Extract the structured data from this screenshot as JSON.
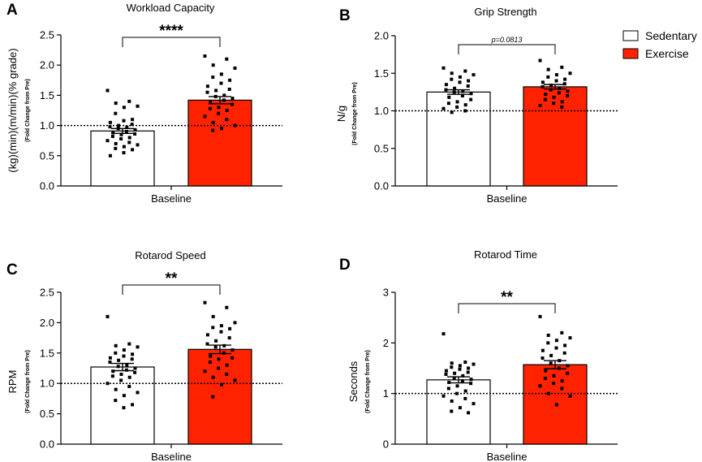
{
  "legend": {
    "items": [
      {
        "label": "Sedentary",
        "color": "#ffffff"
      },
      {
        "label": "Exercise",
        "color": "#ff2200"
      }
    ]
  },
  "chart_data": [
    {
      "panel": "A",
      "type": "bar",
      "title": "Workload Capacity",
      "xlabel": "Baseline",
      "ylabel": "(kg)(min)(m/min)(% grade)",
      "ylabel_sub": "(Fold Change from Pre)",
      "ylim": [
        0,
        2.5
      ],
      "yticks": [
        0.0,
        0.5,
        1.0,
        1.5,
        2.0,
        2.5
      ],
      "ytick_labels": [
        "0.0",
        "0.5",
        "1.0",
        "1.5",
        "2.0",
        "2.5"
      ],
      "reference_line": 1.0,
      "significance": "****",
      "series": [
        {
          "name": "Sedentary",
          "color": "#ffffff",
          "mean": 0.91,
          "sem": 0.04,
          "points": [
            1.58,
            1.4,
            1.37,
            1.32,
            1.3,
            1.2,
            1.1,
            1.08,
            1.05,
            1.02,
            1.0,
            0.98,
            0.97,
            0.95,
            0.93,
            0.9,
            0.88,
            0.86,
            0.85,
            0.82,
            0.8,
            0.78,
            0.75,
            0.72,
            0.7,
            0.68,
            0.65,
            0.62,
            0.6,
            0.55,
            0.5
          ]
        },
        {
          "name": "Exercise",
          "color": "#ff2200",
          "mean": 1.42,
          "sem": 0.06,
          "points": [
            2.15,
            2.1,
            2.0,
            1.95,
            1.85,
            1.8,
            1.75,
            1.7,
            1.65,
            1.6,
            1.58,
            1.55,
            1.5,
            1.48,
            1.45,
            1.42,
            1.4,
            1.35,
            1.3,
            1.28,
            1.25,
            1.2,
            1.15,
            1.1,
            1.05,
            1.0,
            0.95,
            0.92
          ]
        }
      ]
    },
    {
      "panel": "B",
      "type": "bar",
      "title": "Grip Strength",
      "xlabel": "Baseline",
      "ylabel": "N/g",
      "ylabel_sub": "(Fold Change from Pre)",
      "ylim": [
        0,
        2.0
      ],
      "yticks": [
        0.0,
        0.5,
        1.0,
        1.5,
        2.0
      ],
      "ytick_labels": [
        "0.0",
        "0.5",
        "1.0",
        "1.5",
        "2.0"
      ],
      "reference_line": 1.0,
      "significance": "p=0.0813",
      "series": [
        {
          "name": "Sedentary",
          "color": "#ffffff",
          "mean": 1.25,
          "sem": 0.03,
          "points": [
            1.57,
            1.53,
            1.5,
            1.48,
            1.45,
            1.42,
            1.4,
            1.38,
            1.35,
            1.33,
            1.3,
            1.28,
            1.26,
            1.25,
            1.23,
            1.2,
            1.18,
            1.15,
            1.12,
            1.1,
            1.08,
            1.05,
            1.03,
            1.0,
            0.98
          ]
        },
        {
          "name": "Exercise",
          "color": "#ff2200",
          "mean": 1.32,
          "sem": 0.03,
          "points": [
            1.67,
            1.58,
            1.55,
            1.5,
            1.48,
            1.45,
            1.42,
            1.4,
            1.38,
            1.36,
            1.34,
            1.32,
            1.3,
            1.28,
            1.26,
            1.24,
            1.22,
            1.2,
            1.18,
            1.15,
            1.12,
            1.1,
            1.07,
            1.05
          ]
        }
      ]
    },
    {
      "panel": "C",
      "type": "bar",
      "title": "Rotarod Speed",
      "xlabel": "Baseline",
      "ylabel": "RPM",
      "ylabel_sub": "(Fold Change from Pre)",
      "ylim": [
        0,
        2.5
      ],
      "yticks": [
        0.0,
        0.5,
        1.0,
        1.5,
        2.0,
        2.5
      ],
      "ytick_labels": [
        "0.0",
        "0.5",
        "1.0",
        "1.5",
        "2.0",
        "2.5"
      ],
      "reference_line": 1.0,
      "significance": "**",
      "series": [
        {
          "name": "Sedentary",
          "color": "#ffffff",
          "mean": 1.27,
          "sem": 0.06,
          "points": [
            2.1,
            1.65,
            1.62,
            1.6,
            1.55,
            1.5,
            1.48,
            1.45,
            1.42,
            1.4,
            1.38,
            1.35,
            1.3,
            1.28,
            1.25,
            1.22,
            1.2,
            1.18,
            1.15,
            1.12,
            1.1,
            1.05,
            1.0,
            0.95,
            0.9,
            0.85,
            0.8,
            0.72,
            0.65,
            0.6
          ]
        },
        {
          "name": "Exercise",
          "color": "#ff2200",
          "mean": 1.56,
          "sem": 0.07,
          "points": [
            2.33,
            2.25,
            2.1,
            2.0,
            1.95,
            1.92,
            1.9,
            1.85,
            1.8,
            1.75,
            1.7,
            1.65,
            1.62,
            1.6,
            1.55,
            1.5,
            1.45,
            1.42,
            1.4,
            1.35,
            1.3,
            1.25,
            1.2,
            1.15,
            1.1,
            1.05,
            0.98,
            0.78
          ]
        }
      ]
    },
    {
      "panel": "D",
      "type": "bar",
      "title": "Rotarod Time",
      "xlabel": "Baseline",
      "ylabel": "Seconds",
      "ylabel_sub": "(Fold Change from Pre)",
      "ylim": [
        0,
        3
      ],
      "yticks": [
        0,
        1,
        2,
        3
      ],
      "ytick_labels": [
        "0",
        "1",
        "2",
        "3"
      ],
      "reference_line": 1.0,
      "significance": "**",
      "series": [
        {
          "name": "Sedentary",
          "color": "#ffffff",
          "mean": 1.27,
          "sem": 0.06,
          "points": [
            2.18,
            1.62,
            1.6,
            1.58,
            1.55,
            1.52,
            1.5,
            1.48,
            1.45,
            1.42,
            1.4,
            1.38,
            1.35,
            1.3,
            1.28,
            1.25,
            1.22,
            1.2,
            1.15,
            1.1,
            1.05,
            1.0,
            0.95,
            0.9,
            0.85,
            0.8,
            0.72,
            0.65,
            0.62
          ]
        },
        {
          "name": "Exercise",
          "color": "#ff2200",
          "mean": 1.57,
          "sem": 0.08,
          "points": [
            2.52,
            2.2,
            2.15,
            2.1,
            2.05,
            2.0,
            1.95,
            1.9,
            1.85,
            1.8,
            1.75,
            1.7,
            1.65,
            1.6,
            1.55,
            1.5,
            1.45,
            1.4,
            1.35,
            1.3,
            1.25,
            1.2,
            1.15,
            1.1,
            1.0,
            0.95,
            0.78
          ]
        }
      ]
    }
  ]
}
